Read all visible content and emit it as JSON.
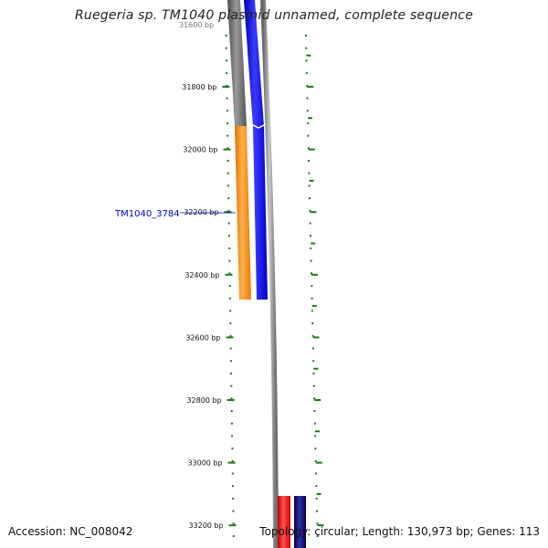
{
  "title": "Ruegeria sp. TM1040 plasmid unnamed, complete sequence",
  "footer": {
    "accession": "Accession: NC_008042",
    "topology": "Topology: circular; Length: 130,973 bp; Genes: 113"
  },
  "colors": {
    "backbone": "#888888",
    "tick_mark": "#1a7a1a",
    "gene_orange": "#ff8c00",
    "gene_blue": "#0000ff",
    "gene_gray": "#666666",
    "gene_red": "#ff0000",
    "gene_navy": "#000080",
    "label_blue": "#0000cc"
  },
  "ruler": {
    "unit": "bp",
    "tick_labels": [
      "31800 bp",
      "32000 bp",
      "32200 bp",
      "32400 bp",
      "32600 bp",
      "32800 bp",
      "33000 bp",
      "33200 bp"
    ],
    "partial_top_label": "31600 bp"
  },
  "gene_label": "TM1040_3784"
}
